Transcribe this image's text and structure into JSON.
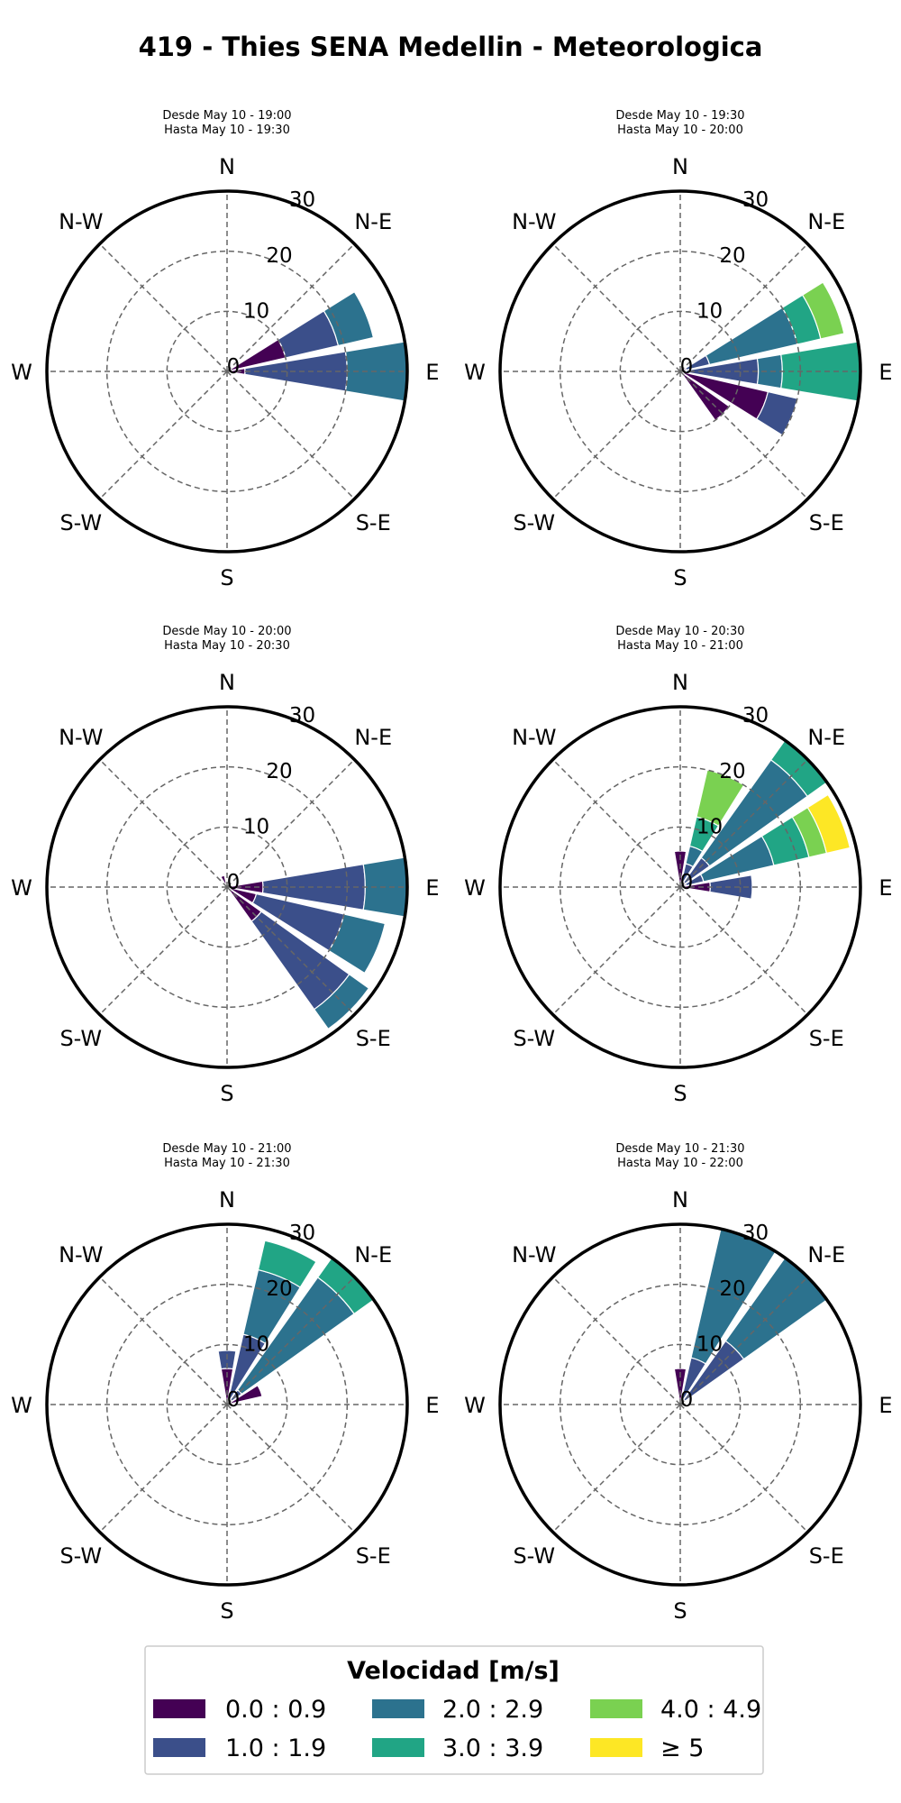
{
  "figure": {
    "title": "419 - Thies SENA Medellin - Meteorologica"
  },
  "colors": [
    "#440154",
    "#3b4f8a",
    "#2c728e",
    "#21a585",
    "#7ad151",
    "#fde725"
  ],
  "chart_data": [
    {
      "type": "windrose",
      "subtitle_from": "Desde May 10 - 19:00",
      "subtitle_to": "Hasta May 10 - 19:30",
      "directions": [
        "N",
        "N-E",
        "E",
        "S-E",
        "S",
        "S-W",
        "W",
        "N-W"
      ],
      "rticks": [
        "0",
        "10",
        "20",
        "30"
      ],
      "rlim": [
        0,
        30
      ],
      "bars": [
        {
          "angle": 67.5,
          "segments": [
            10,
            19,
            25
          ]
        },
        {
          "angle": 90,
          "segments": [
            3,
            20,
            30
          ]
        }
      ]
    },
    {
      "type": "windrose",
      "subtitle_from": "Desde May 10 - 19:30",
      "subtitle_to": "Hasta May 10 - 20:00",
      "directions": [
        "N",
        "N-E",
        "E",
        "S-E",
        "S",
        "S-W",
        "W",
        "N-W"
      ],
      "rticks": [
        "0",
        "10",
        "20",
        "30"
      ],
      "rlim": [
        0,
        30
      ],
      "bars": [
        {
          "angle": 67.5,
          "segments": [
            1,
            5,
            20,
            24,
            28
          ]
        },
        {
          "angle": 90,
          "segments": [
            1,
            13,
            17,
            30
          ]
        },
        {
          "angle": 112.5,
          "segments": [
            15,
            20
          ]
        },
        {
          "angle": 135,
          "segments": [
            10
          ]
        }
      ]
    },
    {
      "type": "windrose",
      "subtitle_from": "Desde May 10 - 20:00",
      "subtitle_to": "Hasta May 10 - 20:30",
      "directions": [
        "N",
        "N-E",
        "E",
        "S-E",
        "S",
        "S-W",
        "W",
        "N-W"
      ],
      "rticks": [
        "0",
        "10",
        "20",
        "30"
      ],
      "rlim": [
        0,
        30
      ],
      "bars": [
        {
          "angle": 90,
          "segments": [
            6,
            23,
            30
          ]
        },
        {
          "angle": 112.5,
          "segments": [
            5,
            20,
            27
          ]
        },
        {
          "angle": 135,
          "segments": [
            7,
            25,
            29
          ]
        },
        {
          "angle": 337.5,
          "segments": [
            2
          ]
        }
      ]
    },
    {
      "type": "windrose",
      "subtitle_from": "Desde May 10 - 20:30",
      "subtitle_to": "Hasta May 10 - 21:00",
      "directions": [
        "N",
        "N-E",
        "E",
        "S-E",
        "S",
        "S-W",
        "W",
        "N-W"
      ],
      "rticks": [
        "0",
        "10",
        "20",
        "30"
      ],
      "rlim": [
        0,
        30
      ],
      "bars": [
        {
          "angle": 0,
          "segments": [
            6
          ]
        },
        {
          "angle": 22.5,
          "segments": [
            1,
            4,
            7,
            12,
            20
          ]
        },
        {
          "angle": 45,
          "segments": [
            1,
            6,
            26,
            30
          ]
        },
        {
          "angle": 67.5,
          "segments": [
            1,
            4,
            16,
            22,
            25,
            29
          ]
        },
        {
          "angle": 90,
          "segments": [
            5,
            12
          ]
        }
      ]
    },
    {
      "type": "windrose",
      "subtitle_from": "Desde May 10 - 21:00",
      "subtitle_to": "Hasta May 10 - 21:30",
      "directions": [
        "N",
        "N-E",
        "E",
        "S-E",
        "S",
        "S-W",
        "W",
        "N-W"
      ],
      "rticks": [
        "0",
        "10",
        "20",
        "30"
      ],
      "rlim": [
        0,
        30
      ],
      "bars": [
        {
          "angle": 0,
          "segments": [
            6,
            9
          ]
        },
        {
          "angle": 22.5,
          "segments": [
            1,
            12,
            23,
            28
          ]
        },
        {
          "angle": 45,
          "segments": [
            1,
            3,
            26,
            30
          ]
        },
        {
          "angle": 67.5,
          "segments": [
            6
          ]
        }
      ]
    },
    {
      "type": "windrose",
      "subtitle_from": "Desde May 10 - 21:30",
      "subtitle_to": "Hasta May 10 - 22:00",
      "directions": [
        "N",
        "N-E",
        "E",
        "S-E",
        "S",
        "S-W",
        "W",
        "N-W"
      ],
      "rticks": [
        "0",
        "10",
        "20",
        "30"
      ],
      "rlim": [
        0,
        30
      ],
      "bars": [
        {
          "angle": 0,
          "segments": [
            6
          ]
        },
        {
          "angle": 22.5,
          "segments": [
            1,
            8,
            30
          ]
        },
        {
          "angle": 45,
          "segments": [
            1,
            13,
            30
          ]
        }
      ]
    }
  ],
  "legend": {
    "title": "Velocidad [m/s]",
    "items": [
      {
        "label": "0.0 : 0.9",
        "color": "#440154"
      },
      {
        "label": "1.0 : 1.9",
        "color": "#3b4f8a"
      },
      {
        "label": "2.0 : 2.9",
        "color": "#2c728e"
      },
      {
        "label": "3.0 : 3.9",
        "color": "#21a585"
      },
      {
        "label": "4.0 : 4.9",
        "color": "#7ad151"
      },
      {
        "label": "≥  5",
        "color": "#fde725"
      }
    ]
  }
}
